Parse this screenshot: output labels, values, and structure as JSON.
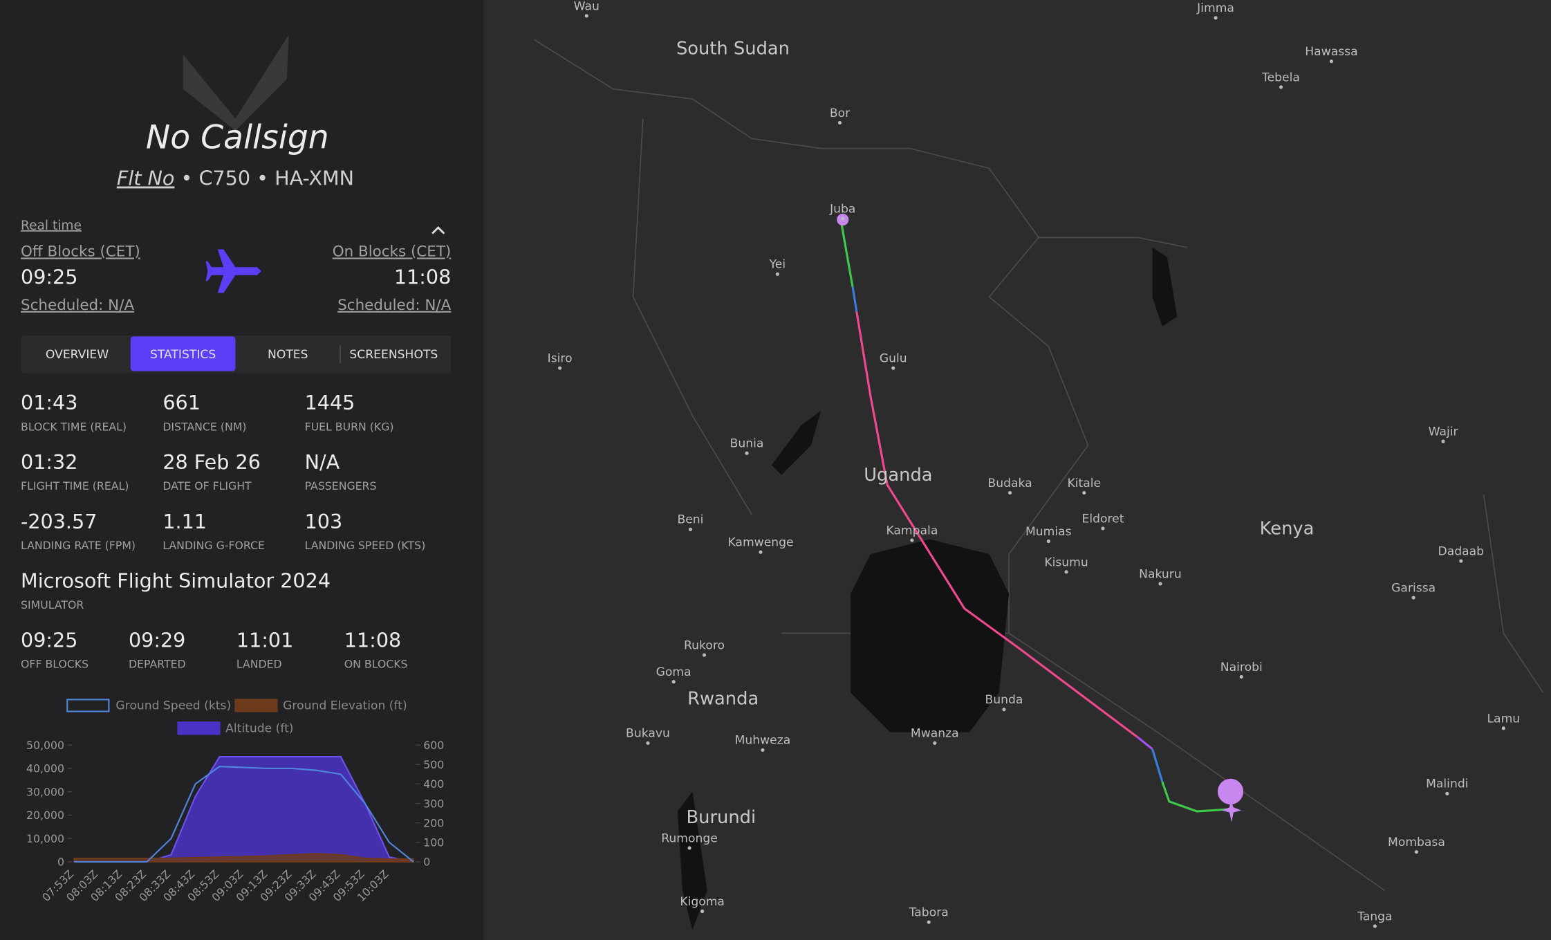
{
  "header": {
    "callsign": "No Callsign",
    "flight_no": "Flt No",
    "separator": "•",
    "aircraft": "C750",
    "registration": "HA-XMN"
  },
  "times": {
    "real_time": "Real time",
    "off_blocks_label": "Off Blocks (CET)",
    "off_blocks": "09:25",
    "scheduled_off": "Scheduled: N/A",
    "on_blocks_label": "On Blocks (CET)",
    "on_blocks": "11:08",
    "scheduled_on": "Scheduled: N/A"
  },
  "tabs": [
    "OVERVIEW",
    "STATISTICS",
    "NOTES",
    "SCREENSHOTS"
  ],
  "stats": [
    {
      "value": "01:43",
      "label": "BLOCK TIME (REAL)"
    },
    {
      "value": "661",
      "label": "DISTANCE (NM)"
    },
    {
      "value": "1445",
      "label": "FUEL BURN (KG)"
    },
    {
      "value": "01:32",
      "label": "FLIGHT TIME (REAL)"
    },
    {
      "value": "28 Feb 26",
      "label": "DATE OF FLIGHT"
    },
    {
      "value": "N/A",
      "label": "PASSENGERS"
    },
    {
      "value": "-203.57",
      "label": "LANDING RATE (FPM)"
    },
    {
      "value": "1.11",
      "label": "LANDING G-FORCE"
    },
    {
      "value": "103",
      "label": "LANDING SPEED (KTS)"
    }
  ],
  "simulator": {
    "value": "Microsoft Flight Simulator 2024",
    "label": "SIMULATOR"
  },
  "timeline": [
    {
      "value": "09:25",
      "label": "OFF BLOCKS"
    },
    {
      "value": "09:29",
      "label": "DEPARTED"
    },
    {
      "value": "11:01",
      "label": "LANDED"
    },
    {
      "value": "11:08",
      "label": "ON BLOCKS"
    }
  ],
  "chart_data": {
    "type": "line",
    "categories": [
      "07:53Z",
      "08:03Z",
      "08:13Z",
      "08:23Z",
      "08:33Z",
      "08:43Z",
      "08:53Z",
      "09:03Z",
      "09:13Z",
      "09:23Z",
      "09:33Z",
      "09:43Z",
      "09:53Z",
      "10:03Z",
      null
    ],
    "series": [
      {
        "name": "Ground Speed (kts)",
        "color": "#4f86e0",
        "axis": "y2",
        "values": [
          0,
          0,
          0,
          0,
          120,
          400,
          490,
          485,
          480,
          480,
          470,
          450,
          300,
          100,
          0
        ]
      },
      {
        "name": "Ground Elevation (ft)",
        "color": "#6e3a1c",
        "values": [
          1500,
          1500,
          1500,
          1500,
          1500,
          1800,
          2000,
          2200,
          2500,
          3000,
          3500,
          3000,
          1500,
          1200,
          1200
        ]
      },
      {
        "name": "Altitude (ft)",
        "color": "#4a31c4",
        "values": [
          0,
          0,
          0,
          0,
          3000,
          28000,
          45000,
          45000,
          45000,
          45000,
          45000,
          45000,
          25000,
          2000,
          0
        ]
      }
    ],
    "ylim": [
      0,
      50000
    ],
    "yticks": [
      0,
      {
        "value": 10000,
        "label": "10,000"
      },
      {
        "value": 20000,
        "label": "20,000"
      },
      {
        "value": 30000,
        "label": "30,000"
      },
      {
        "value": 40000,
        "label": "40,000"
      },
      {
        "value": 50000,
        "label": "50,000"
      }
    ],
    "y2lim": [
      0,
      600
    ],
    "y2ticks": [
      0,
      100,
      200,
      300,
      400,
      500,
      600
    ]
  },
  "map": {
    "countries": [
      "South Sudan",
      "Uganda",
      "Kenya",
      "Rwanda",
      "Burundi"
    ],
    "places": [
      "Wau",
      "Jimma",
      "Hawassa",
      "Tebela",
      "Bor",
      "Juba",
      "Yei",
      "Gulu",
      "Isiro",
      "Bunia",
      "Beni",
      "Kamwenge",
      "Kampala",
      "Budaka",
      "Kitale",
      "Eldoret",
      "Mumias",
      "Kisumu",
      "Nakuru",
      "Nairobi",
      "Wajir",
      "Dadaab",
      "Garissa",
      "Lamu",
      "Malindi",
      "Mombasa",
      "Tanga",
      "Bunda",
      "Mwanza",
      "Muhweza",
      "Rukoro",
      "Goma",
      "Bukavu",
      "Rumonge",
      "Kigoma",
      "Tabora"
    ]
  }
}
